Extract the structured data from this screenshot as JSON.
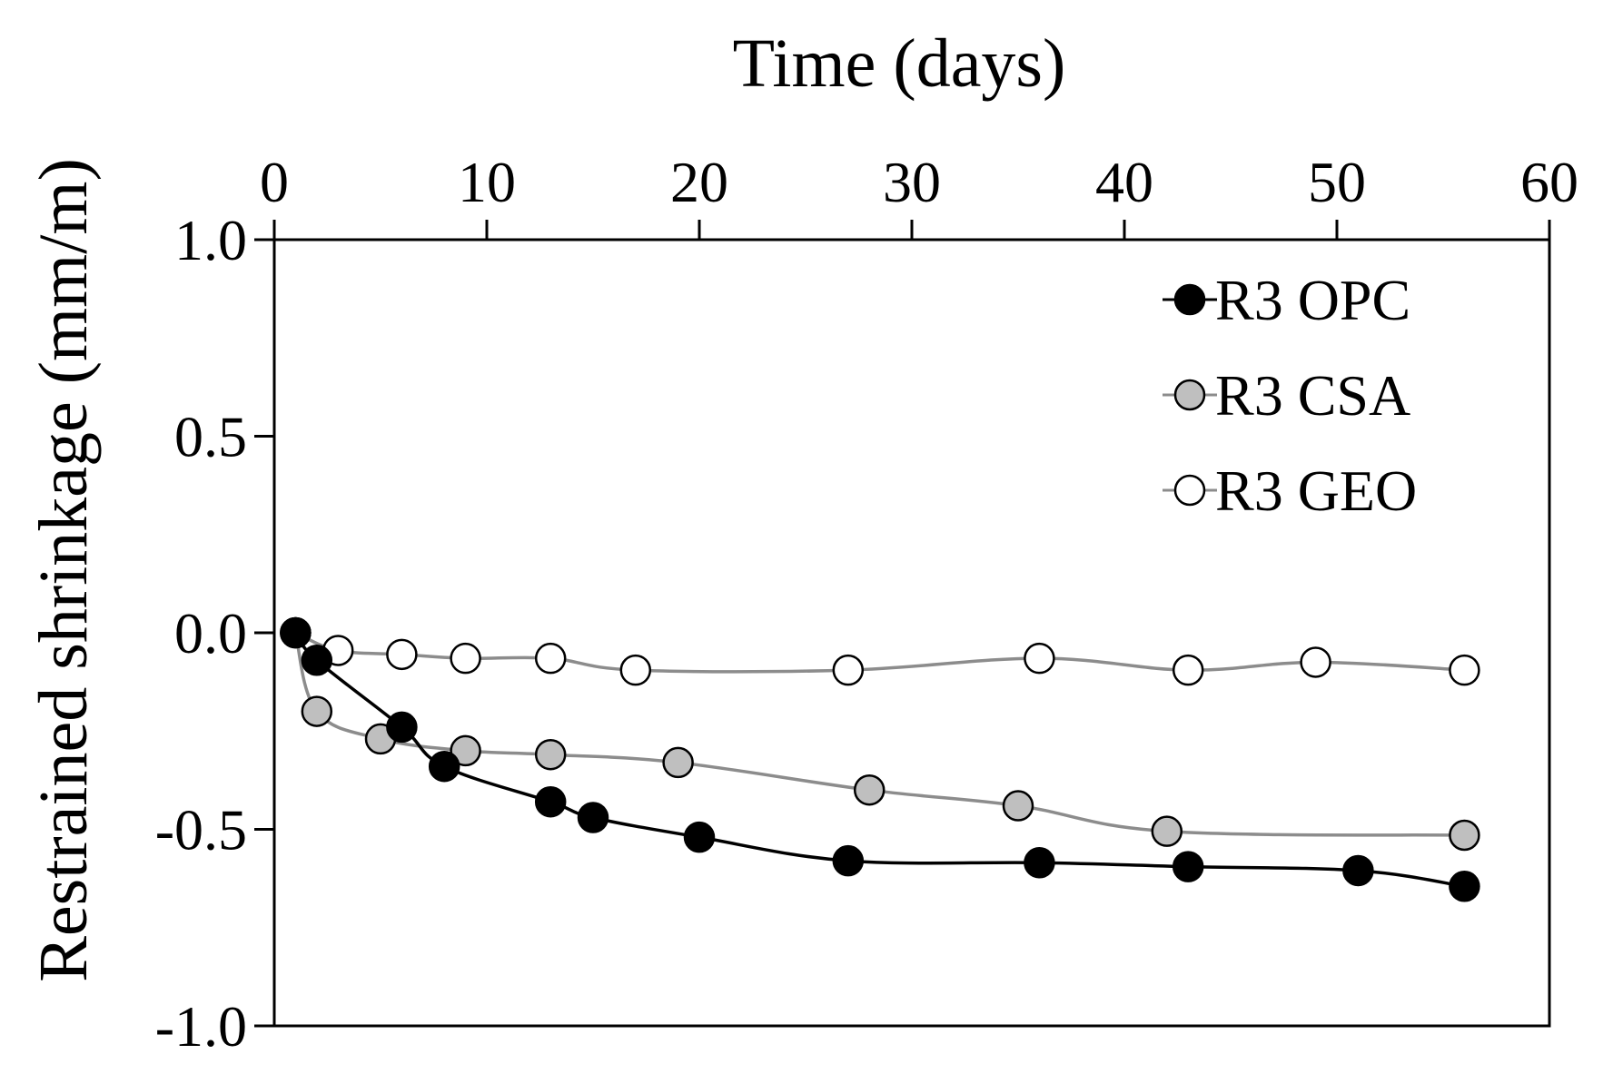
{
  "chart_data": {
    "type": "line",
    "title": "",
    "xlabel": "Time (days)",
    "ylabel": "Restrained shrinkage (mm/m)",
    "xlim": [
      0,
      60
    ],
    "ylim": [
      -1.0,
      1.0
    ],
    "xticks": [
      0,
      10,
      20,
      30,
      40,
      50,
      60
    ],
    "xtick_labels": [
      "0",
      "10",
      "20",
      "30",
      "40",
      "50",
      "60"
    ],
    "yticks": [
      1.0,
      0.5,
      0.0,
      -0.5,
      -1.0
    ],
    "ytick_labels": [
      "1.0",
      "0.5",
      "0.0",
      "-0.5",
      "-1.0"
    ],
    "x_axis_position": "top",
    "grid": false,
    "legend_position": "top-right",
    "series": [
      {
        "name": "R3 OPC",
        "marker_fill": "#000000",
        "marker_stroke": "#000000",
        "line_color": "#000000",
        "x": [
          1,
          2,
          6,
          8,
          13,
          15,
          20,
          27,
          36,
          43,
          51,
          56
        ],
        "y": [
          0.0,
          -0.07,
          -0.24,
          -0.34,
          -0.43,
          -0.47,
          -0.52,
          -0.58,
          -0.585,
          -0.595,
          -0.605,
          -0.645
        ]
      },
      {
        "name": "R3 CSA",
        "marker_fill": "#bfbfbf",
        "marker_stroke": "#000000",
        "line_color": "#8c8c8c",
        "x": [
          1,
          2,
          5,
          9,
          13,
          19,
          28,
          35,
          42,
          56
        ],
        "y": [
          0.0,
          -0.2,
          -0.27,
          -0.3,
          -0.31,
          -0.33,
          -0.4,
          -0.44,
          -0.505,
          -0.515
        ]
      },
      {
        "name": "R3 GEO",
        "marker_fill": "#ffffff",
        "marker_stroke": "#000000",
        "line_color": "#8c8c8c",
        "x": [
          1,
          3,
          6,
          9,
          13,
          17,
          27,
          36,
          43,
          49,
          56
        ],
        "y": [
          0.0,
          -0.045,
          -0.055,
          -0.065,
          -0.065,
          -0.095,
          -0.095,
          -0.065,
          -0.095,
          -0.075,
          -0.095
        ]
      }
    ]
  }
}
